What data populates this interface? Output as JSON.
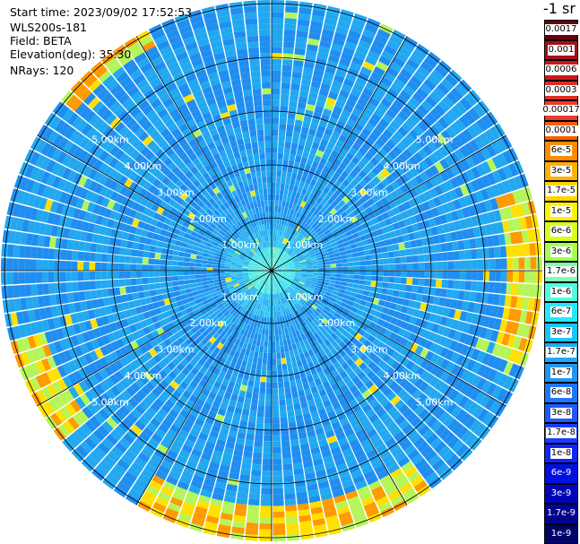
{
  "info": {
    "start_time": "Start time: 2023/09/02 17:52:53",
    "device": "WLS200s-181",
    "field": "Field: BETA",
    "elevation": "Elevation(deg): 35.30",
    "nrays": "NRays: 120"
  },
  "unit_label": "-1 sr",
  "range_rings": [
    "1.00km",
    "2.00km",
    "3.00km",
    "4.00km",
    "5.00km"
  ],
  "colorbar": {
    "labels": [
      "0.0017",
      "0.001",
      "0.0006",
      "0.0003",
      "0.00017",
      "0.0001",
      "6e-5",
      "3e-5",
      "1.7e-5",
      "1e-5",
      "6e-6",
      "3e-6",
      "1.7e-6",
      "1e-6",
      "6e-7",
      "3e-7",
      "1.7e-7",
      "1e-7",
      "6e-8",
      "3e-8",
      "1.7e-8",
      "1e-8",
      "6e-9",
      "3e-9",
      "1.7e-9",
      "1e-9"
    ],
    "colors": [
      "#67000d",
      "#a50f15",
      "#cb181d",
      "#de2d26",
      "#ef3b2c",
      "#fe5c00",
      "#ff8c00",
      "#ffb000",
      "#ffd500",
      "#fff200",
      "#d6ff1f",
      "#a5ff4f",
      "#7dffb0",
      "#4dffe0",
      "#22e8ff",
      "#17c6ff",
      "#1fa8ff",
      "#2196f3",
      "#1e78ff",
      "#1f5aff",
      "#1a3cff",
      "#1024ff",
      "#0010e0",
      "#0006b8",
      "#020490",
      "#010466"
    ],
    "edge_color": "#ffffff"
  },
  "plot_colors": {
    "background": "#ffffff",
    "grid": "#000000",
    "ring_label": "#ffffff"
  }
}
